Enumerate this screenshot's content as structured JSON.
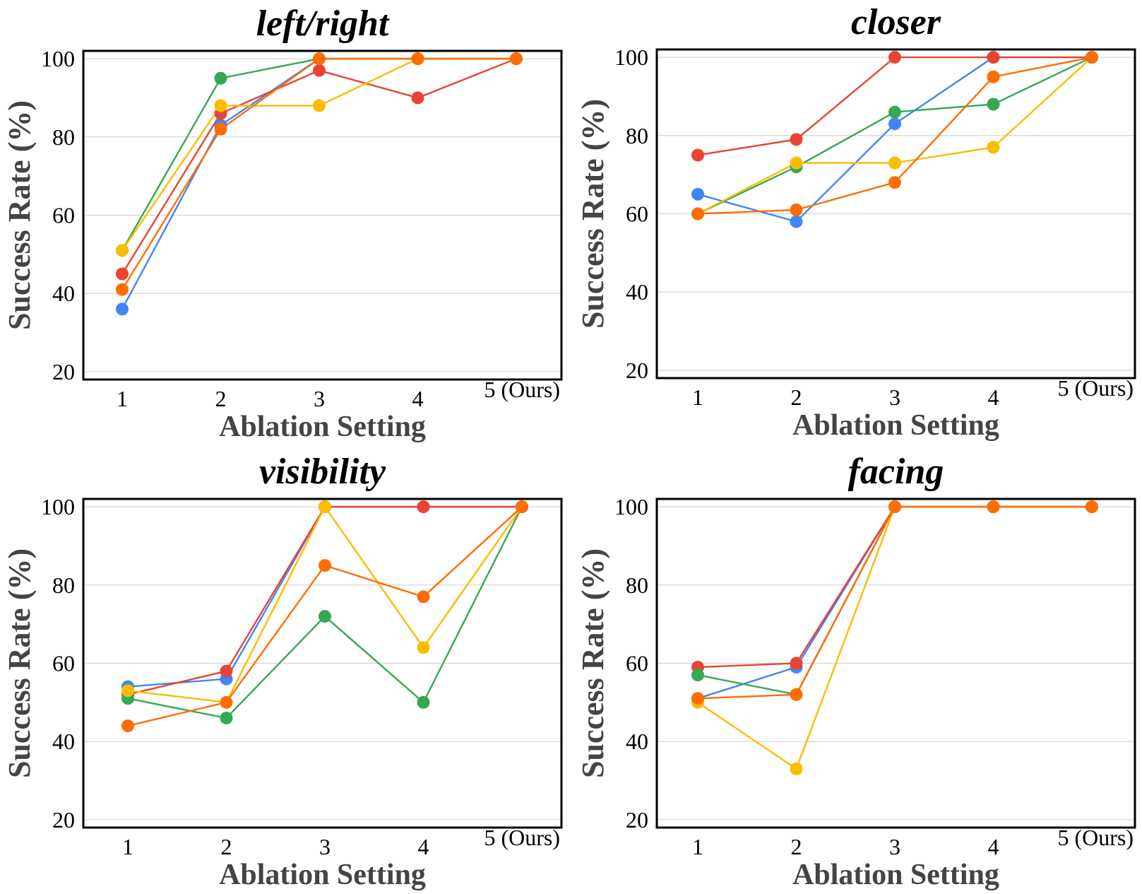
{
  "series_names": [
    "blue",
    "red",
    "green",
    "yellow",
    "orange"
  ],
  "series_colors": {
    "blue": "#4285f4",
    "red": "#ea4335",
    "green": "#34a853",
    "yellow": "#fbbc04",
    "orange": "#ff6d01"
  },
  "chart_data": [
    {
      "type": "line",
      "title": "left/right",
      "xlabel": "Ablation Setting",
      "ylabel": "Success Rate (%)",
      "categories": [
        "1",
        "2",
        "3",
        "4",
        "5 (Ours)"
      ],
      "yticks": [
        "20",
        "40",
        "60",
        "80",
        "100"
      ],
      "ylim": [
        18,
        102
      ],
      "grid": true,
      "series": [
        {
          "name": "blue",
          "values": [
            36,
            83,
            100,
            100,
            100
          ]
        },
        {
          "name": "red",
          "values": [
            45,
            86,
            97,
            90,
            100
          ]
        },
        {
          "name": "green",
          "values": [
            51,
            95,
            100,
            100,
            100
          ]
        },
        {
          "name": "yellow",
          "values": [
            51,
            88,
            88,
            100,
            100
          ]
        },
        {
          "name": "orange",
          "values": [
            41,
            82,
            100,
            100,
            100
          ]
        }
      ]
    },
    {
      "type": "line",
      "title": "closer",
      "xlabel": "Ablation Setting",
      "ylabel": "Success Rate (%)",
      "categories": [
        "1",
        "2",
        "3",
        "4",
        "5 (Ours)"
      ],
      "yticks": [
        "20",
        "40",
        "60",
        "80",
        "100"
      ],
      "ylim": [
        18,
        102
      ],
      "grid": true,
      "series": [
        {
          "name": "blue",
          "values": [
            65,
            58,
            83,
            100,
            100
          ]
        },
        {
          "name": "red",
          "values": [
            75,
            79,
            100,
            100,
            100
          ]
        },
        {
          "name": "green",
          "values": [
            60,
            72,
            86,
            88,
            100
          ]
        },
        {
          "name": "yellow",
          "values": [
            60,
            73,
            73,
            77,
            100
          ]
        },
        {
          "name": "orange",
          "values": [
            60,
            61,
            68,
            95,
            100
          ]
        }
      ]
    },
    {
      "type": "line",
      "title": "visibility",
      "xlabel": "Ablation Setting",
      "ylabel": "Success Rate (%)",
      "categories": [
        "1",
        "2",
        "3",
        "4",
        "5 (Ours)"
      ],
      "yticks": [
        "20",
        "40",
        "60",
        "80",
        "100"
      ],
      "ylim": [
        18,
        102
      ],
      "grid": true,
      "series": [
        {
          "name": "blue",
          "values": [
            54,
            56,
            100,
            100,
            100
          ]
        },
        {
          "name": "red",
          "values": [
            52,
            58,
            100,
            100,
            100
          ]
        },
        {
          "name": "green",
          "values": [
            51,
            46,
            72,
            50,
            100
          ]
        },
        {
          "name": "yellow",
          "values": [
            53,
            50,
            100,
            64,
            100
          ]
        },
        {
          "name": "orange",
          "values": [
            44,
            50,
            85,
            77,
            100
          ]
        }
      ]
    },
    {
      "type": "line",
      "title": "facing",
      "xlabel": "Ablation Setting",
      "ylabel": "Success Rate (%)",
      "categories": [
        "1",
        "2",
        "3",
        "4",
        "5 (Ours)"
      ],
      "yticks": [
        "20",
        "40",
        "60",
        "80",
        "100"
      ],
      "ylim": [
        18,
        102
      ],
      "grid": true,
      "series": [
        {
          "name": "blue",
          "values": [
            51,
            59,
            100,
            100,
            100
          ]
        },
        {
          "name": "red",
          "values": [
            59,
            60,
            100,
            100,
            100
          ]
        },
        {
          "name": "green",
          "values": [
            57,
            52,
            100,
            100,
            100
          ]
        },
        {
          "name": "yellow",
          "values": [
            50,
            33,
            100,
            100,
            100
          ]
        },
        {
          "name": "orange",
          "values": [
            51,
            52,
            100,
            100,
            100
          ]
        }
      ]
    }
  ]
}
